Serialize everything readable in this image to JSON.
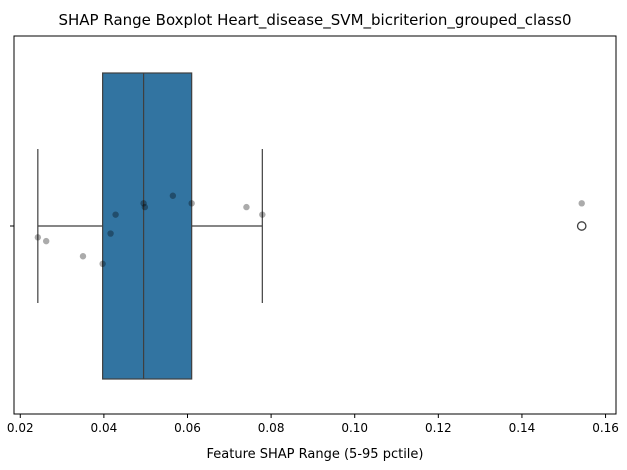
{
  "chart_data": {
    "type": "boxplot",
    "title": "SHAP Range Boxplot Heart_disease_SVM_bicriterion_grouped_class0",
    "xlabel": "Feature SHAP Range (5-95 pctile)",
    "ylabel": "",
    "xlim": [
      0.0185,
      0.1625
    ],
    "xticks": [
      0.02,
      0.04,
      0.06,
      0.08,
      0.1,
      0.12,
      0.14,
      0.16
    ],
    "xtick_labels": [
      "0.02",
      "0.04",
      "0.06",
      "0.08",
      "0.10",
      "0.12",
      "0.14",
      "0.16"
    ],
    "box": {
      "whisker_low": 0.0242,
      "q1": 0.0397,
      "median": 0.0495,
      "q3": 0.061,
      "whisker_high": 0.0779,
      "outliers": [
        0.1543
      ],
      "color": "#3274a1"
    },
    "points": [
      {
        "x": 0.0242,
        "y": -0.03
      },
      {
        "x": 0.0262,
        "y": -0.04
      },
      {
        "x": 0.035,
        "y": -0.08
      },
      {
        "x": 0.0397,
        "y": -0.1
      },
      {
        "x": 0.0416,
        "y": -0.02
      },
      {
        "x": 0.0428,
        "y": 0.03
      },
      {
        "x": 0.0495,
        "y": 0.06
      },
      {
        "x": 0.0498,
        "y": 0.05
      },
      {
        "x": 0.0565,
        "y": 0.08
      },
      {
        "x": 0.061,
        "y": 0.06
      },
      {
        "x": 0.0741,
        "y": 0.05
      },
      {
        "x": 0.0779,
        "y": 0.03
      },
      {
        "x": 0.1543,
        "y": 0.06
      }
    ],
    "grid": false,
    "legend": "none"
  }
}
